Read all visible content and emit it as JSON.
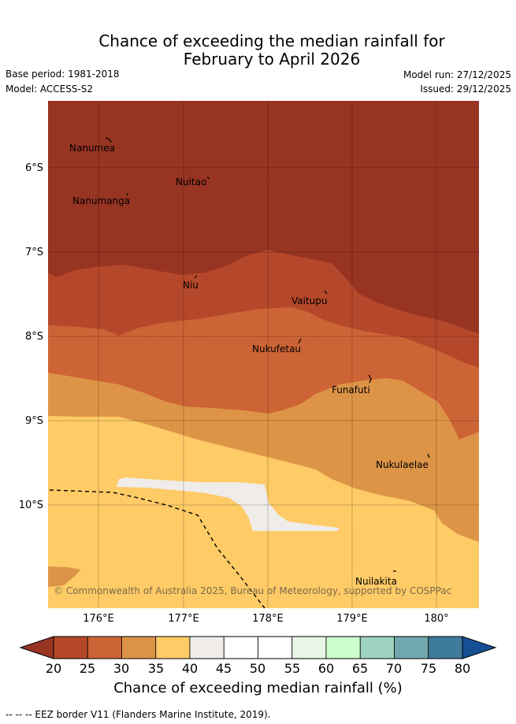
{
  "title": {
    "line1": "Chance of exceeding the median rainfall for",
    "line2": "February to April 2026"
  },
  "meta": {
    "base_period": "Base period: 1981-2018",
    "model": "Model: ACCESS-S2",
    "model_run": "Model run: 27/12/2025",
    "issued": "Issued: 29/12/2025"
  },
  "map": {
    "lat_labels": [
      "6°S",
      "7°S",
      "8°S",
      "9°S",
      "10°S"
    ],
    "lon_labels": [
      "176°E",
      "177°E",
      "178°E",
      "179°E",
      "180°"
    ],
    "places": [
      {
        "name": "Nanumea"
      },
      {
        "name": "Nuitao"
      },
      {
        "name": "Nanumanga"
      },
      {
        "name": "Niu"
      },
      {
        "name": "Vaitupu"
      },
      {
        "name": "Nukufetau"
      },
      {
        "name": "Funafuti"
      },
      {
        "name": "Nukulaelae"
      },
      {
        "name": "Nuilakita"
      }
    ],
    "copyright": "© Commonwealth of Australia 2025, Bureau of Meteorology, supported by COSPPac",
    "colors": {
      "20-25": "#b5482a",
      "25-30": "#cd6435",
      "30-35": "#de9447",
      "35-40": "#fecb66",
      "40-45": "#f0ece9",
      "below-20": "#983422"
    }
  },
  "colorbar": {
    "ticks": [
      "20",
      "25",
      "30",
      "35",
      "40",
      "45",
      "50",
      "55",
      "60",
      "65",
      "70",
      "75",
      "80"
    ],
    "colors": [
      "#b5482a",
      "#cd6435",
      "#de9447",
      "#fecb66",
      "#f0ece9",
      "#ffffff",
      "#ffffff",
      "#e9f5e6",
      "#ccffcc",
      "#9fd2c0",
      "#70a8ae",
      "#3f7b9a"
    ],
    "under_color": "#983422",
    "over_color": "#155095",
    "label": "Chance of exceeding median rainfall (%)"
  },
  "footer": {
    "eez": "--  --  -- EEZ border V11 (Flanders Marine Institute, 2019)."
  }
}
